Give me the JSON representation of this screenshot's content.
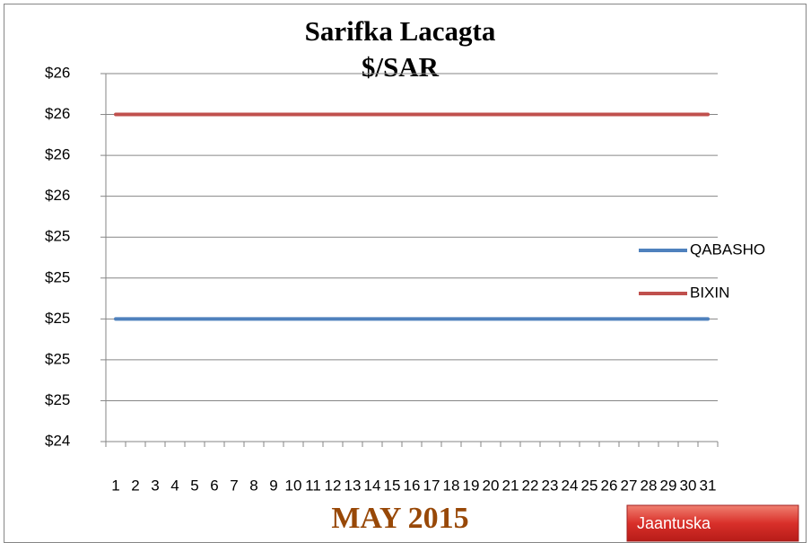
{
  "chart_data": {
    "type": "line",
    "title": "Sarifka Lacagta",
    "subtitle": "$/SAR",
    "xlabel": "MAY 2015",
    "categories": [
      "1",
      "2",
      "3",
      "4",
      "5",
      "6",
      "7",
      "8",
      "9",
      "10",
      "11",
      "12",
      "13",
      "14",
      "15",
      "16",
      "17",
      "18",
      "19",
      "20",
      "21",
      "22",
      "23",
      "24",
      "25",
      "26",
      "27",
      "28",
      "29",
      "30",
      "31"
    ],
    "series": [
      {
        "name": "QABASHO",
        "color": "#4f81bd",
        "values": [
          25,
          25,
          25,
          25,
          25,
          25,
          25,
          25,
          25,
          25,
          25,
          25,
          25,
          25,
          25,
          25,
          25,
          25,
          25,
          25,
          25,
          25,
          25,
          25,
          25,
          25,
          25,
          25,
          25,
          25,
          25
        ]
      },
      {
        "name": "BIXIN",
        "color": "#c0504d",
        "values": [
          26,
          26,
          26,
          26,
          26,
          26,
          26,
          26,
          26,
          26,
          26,
          26,
          26,
          26,
          26,
          26,
          26,
          26,
          26,
          26,
          26,
          26,
          26,
          26,
          26,
          26,
          26,
          26,
          26,
          26,
          26
        ]
      }
    ],
    "ylim": [
      24.4,
      26.2
    ],
    "yticks": [
      {
        "value": 24.4,
        "label": "$24"
      },
      {
        "value": 24.6,
        "label": "$25"
      },
      {
        "value": 24.8,
        "label": "$25"
      },
      {
        "value": 25.0,
        "label": "$25"
      },
      {
        "value": 25.2,
        "label": "$25"
      },
      {
        "value": 25.4,
        "label": "$25"
      },
      {
        "value": 25.6,
        "label": "$26"
      },
      {
        "value": 25.8,
        "label": "$26"
      },
      {
        "value": 26.0,
        "label": "$26"
      },
      {
        "value": 26.2,
        "label": "$26"
      }
    ],
    "grid": true,
    "legend": "right",
    "button": "Jaantuska"
  }
}
